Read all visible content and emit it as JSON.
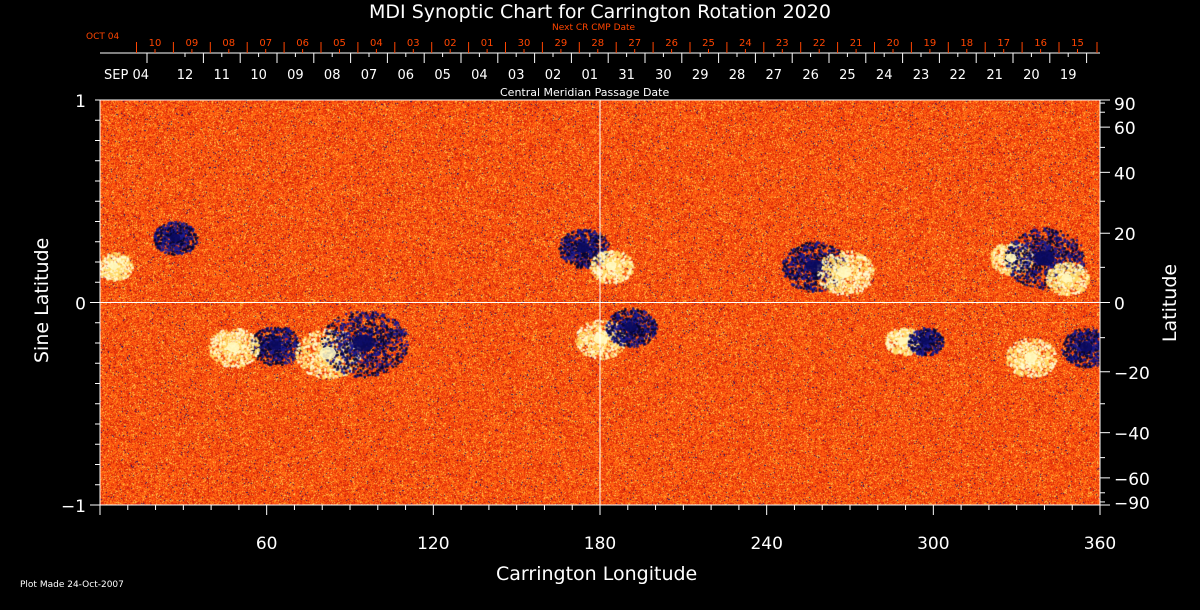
{
  "chart_data": {
    "type": "heatmap",
    "title": "MDI Synoptic Chart for Carrington Rotation 2020",
    "xlabel": "Carrington Longitude",
    "ylabel": "Sine Latitude",
    "y2label": "Latitude",
    "xlim": [
      0,
      360
    ],
    "ylim": [
      -1,
      1
    ],
    "x_ticks": [
      "60",
      "120",
      "180",
      "240",
      "300",
      "360"
    ],
    "x_tick_values": [
      60,
      120,
      180,
      240,
      300,
      360
    ],
    "y_ticks": [
      {
        "value": 1,
        "label": "1"
      },
      {
        "value": 0,
        "label": "0"
      },
      {
        "value": -1,
        "label": "−1"
      }
    ],
    "y2_ticks": [
      90,
      60,
      40,
      20,
      0,
      -20,
      -40,
      -60,
      -90
    ],
    "y2_tick_labels": [
      "90",
      "60",
      "40",
      "20",
      "0",
      "−20",
      "−40",
      "−60",
      "−90"
    ],
    "top_axis": {
      "label": "Central Meridian Passage Date",
      "start_label": "SEP 04",
      "dates": [
        "12",
        "11",
        "10",
        "09",
        "08",
        "07",
        "06",
        "05",
        "04",
        "03",
        "02",
        "01",
        "31",
        "30",
        "29",
        "28",
        "27",
        "26",
        "25",
        "24",
        "23",
        "22",
        "21",
        "20",
        "19"
      ]
    },
    "next_cr_axis": {
      "label": "Next CR CMP Date",
      "start_label": "OCT 04",
      "dates": [
        "10",
        "09",
        "08",
        "07",
        "06",
        "05",
        "04",
        "03",
        "02",
        "01",
        "30",
        "29",
        "28",
        "27",
        "26",
        "25",
        "24",
        "23",
        "22",
        "21",
        "20",
        "19",
        "18",
        "17",
        "16",
        "15"
      ]
    },
    "guides": {
      "longitude": 180,
      "sine_latitude": 0
    },
    "active_regions": [
      {
        "lon": 27,
        "sinlat": 0.32,
        "polarity": "negative",
        "size": 0.6
      },
      {
        "lon": 5,
        "sinlat": 0.18,
        "polarity": "positive",
        "size": 0.5
      },
      {
        "lon": 63,
        "sinlat": -0.21,
        "polarity": "negative",
        "size": 0.7
      },
      {
        "lon": 48,
        "sinlat": -0.22,
        "polarity": "positive",
        "size": 0.7
      },
      {
        "lon": 82,
        "sinlat": -0.25,
        "polarity": "positive",
        "size": 0.9
      },
      {
        "lon": 95,
        "sinlat": -0.2,
        "polarity": "negative",
        "size": 1.2
      },
      {
        "lon": 174,
        "sinlat": 0.27,
        "polarity": "negative",
        "size": 0.7
      },
      {
        "lon": 184,
        "sinlat": 0.18,
        "polarity": "positive",
        "size": 0.6
      },
      {
        "lon": 180,
        "sinlat": -0.18,
        "polarity": "positive",
        "size": 0.7
      },
      {
        "lon": 191,
        "sinlat": -0.12,
        "polarity": "negative",
        "size": 0.7
      },
      {
        "lon": 257,
        "sinlat": 0.18,
        "polarity": "negative",
        "size": 0.9
      },
      {
        "lon": 268,
        "sinlat": 0.15,
        "polarity": "positive",
        "size": 0.8
      },
      {
        "lon": 289,
        "sinlat": -0.19,
        "polarity": "positive",
        "size": 0.5
      },
      {
        "lon": 297,
        "sinlat": -0.19,
        "polarity": "negative",
        "size": 0.5
      },
      {
        "lon": 328,
        "sinlat": 0.22,
        "polarity": "positive",
        "size": 0.6
      },
      {
        "lon": 340,
        "sinlat": 0.22,
        "polarity": "negative",
        "size": 1.1
      },
      {
        "lon": 348,
        "sinlat": 0.12,
        "polarity": "positive",
        "size": 0.6
      },
      {
        "lon": 355,
        "sinlat": -0.22,
        "polarity": "negative",
        "size": 0.7
      },
      {
        "lon": 335,
        "sinlat": -0.27,
        "polarity": "positive",
        "size": 0.7
      }
    ],
    "colors": {
      "background_field": "#ff5a10",
      "positive": "#fff8c0",
      "negative": "#0a0a60",
      "axes": "#ffffff",
      "next_cr": "#ff4500"
    }
  },
  "footer": {
    "plot_made": "Plot Made 24-Oct-2007"
  }
}
